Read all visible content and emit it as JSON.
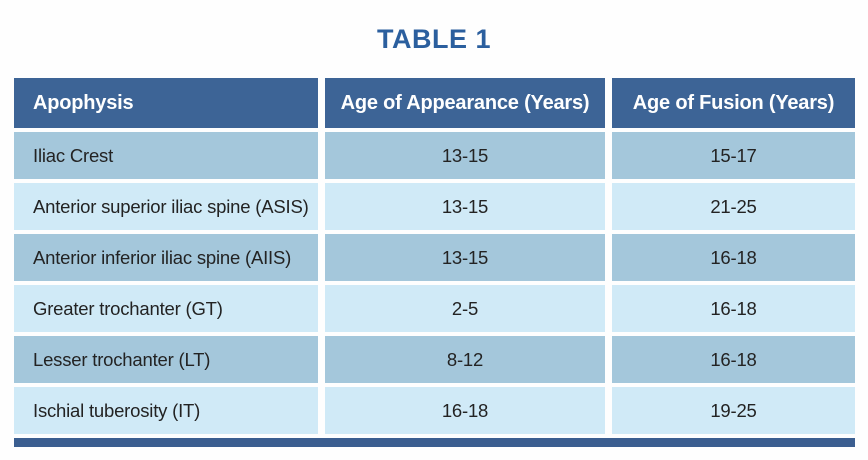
{
  "title": "TABLE 1",
  "table": {
    "columns": [
      "Apophysis",
      "Age of Appearance (Years)",
      "Age of Fusion (Years)"
    ],
    "rows": [
      [
        "Iliac Crest",
        "13-15",
        "15-17"
      ],
      [
        "Anterior superior iliac spine (ASIS)",
        "13-15",
        "21-25"
      ],
      [
        "Anterior inferior iliac spine (AIIS)",
        "13-15",
        "16-18"
      ],
      [
        "Greater trochanter (GT)",
        "2-5",
        "16-18"
      ],
      [
        "Lesser trochanter (LT)",
        "8-12",
        "16-18"
      ],
      [
        "Ischial tuberosity (IT)",
        "16-18",
        "19-25"
      ]
    ]
  },
  "colors": {
    "title_text": "#2b5f9e",
    "header_background": "#3d6496",
    "header_text": "#ffffff",
    "row_medium_blue": "#a4c7db",
    "row_light_blue": "#d0eaf7",
    "cell_text": "#232323",
    "bottom_bar": "#3b5e90",
    "page_background": "#fefefe"
  }
}
